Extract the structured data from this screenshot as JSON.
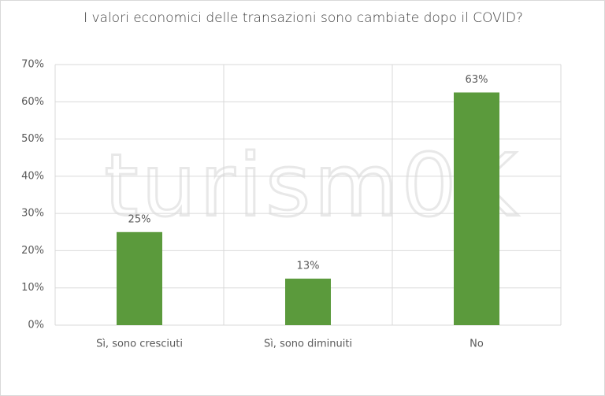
{
  "chart_data": {
    "type": "bar",
    "title": "I valori economici delle transazioni sono cambiate dopo il COVID?",
    "watermark": "turism0K",
    "categories": [
      "Sì, sono cresciuti",
      "Sì, sono diminuiti",
      "No"
    ],
    "values": [
      25,
      12.5,
      62.5
    ],
    "value_labels": [
      "25%",
      "13%",
      "63%"
    ],
    "color": "#5b9a3c",
    "ylim": [
      0,
      70
    ],
    "yticks": [
      {
        "value": 0,
        "label": "0%"
      },
      {
        "value": 10,
        "label": "10%"
      },
      {
        "value": 20,
        "label": "20%"
      },
      {
        "value": 30,
        "label": "30%"
      },
      {
        "value": 40,
        "label": "40%"
      },
      {
        "value": 50,
        "label": "50%"
      },
      {
        "value": 60,
        "label": "60%"
      },
      {
        "value": 70,
        "label": "70%"
      }
    ],
    "grid": true
  }
}
